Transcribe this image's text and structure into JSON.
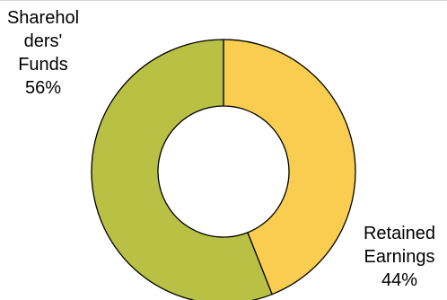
{
  "chart_data": {
    "type": "pie",
    "donut": true,
    "title": "",
    "legend": "none",
    "slices": [
      {
        "label_lines": [
          "Retained",
          "Earnings"
        ],
        "value": 44,
        "value_label": "44%",
        "color": "#f9cd4f"
      },
      {
        "label_lines": [
          "Sharehol",
          "ders'",
          "Funds"
        ],
        "value": 56,
        "value_label": "56%",
        "color": "#b8c143"
      }
    ]
  }
}
